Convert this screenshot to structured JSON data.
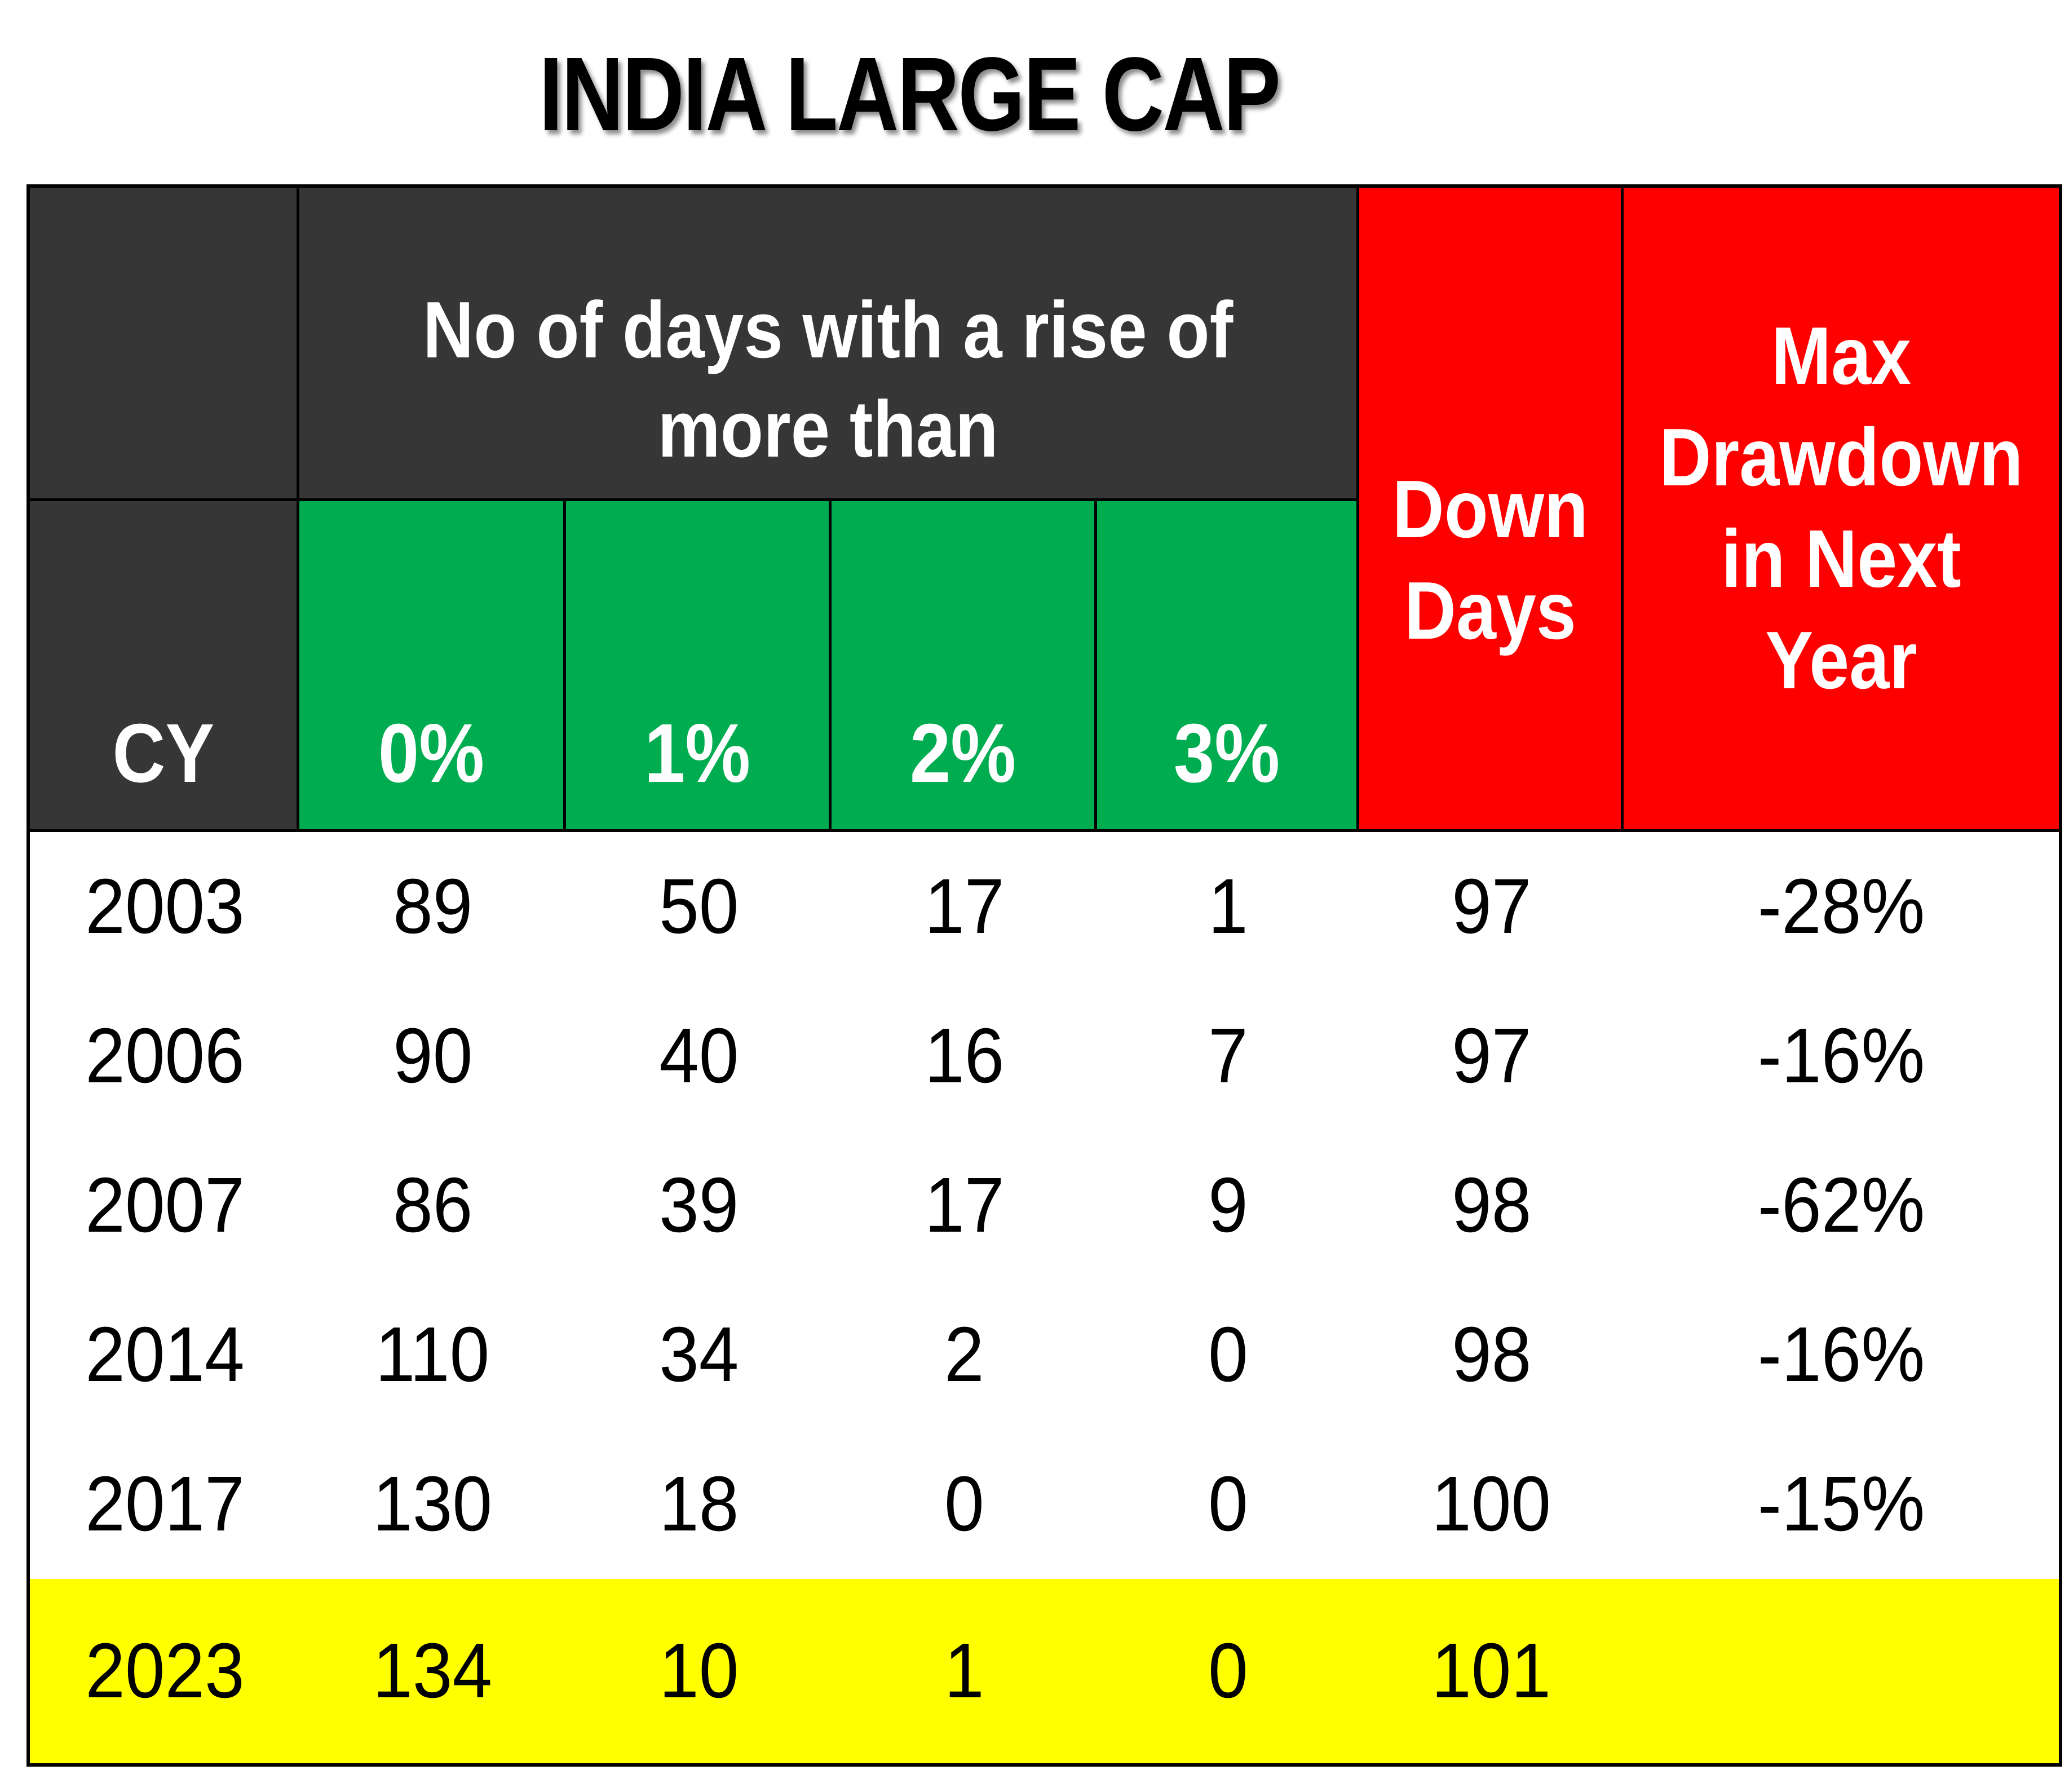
{
  "title": "INDIA LARGE CAP",
  "table": {
    "header": {
      "cy_label": "CY",
      "rise_group_label": "No of days with a rise of\nmore than",
      "rise_columns": [
        "0%",
        "1%",
        "2%",
        "3%"
      ],
      "down_days_label": "Down\nDays",
      "max_drawdown_label": "Max\nDrawdown\nin Next Year"
    },
    "rows": [
      {
        "year": "2003",
        "d0": "89",
        "d1": "50",
        "d2": "17",
        "d3": "1",
        "down": "97",
        "mdd": "-28%"
      },
      {
        "year": "2006",
        "d0": "90",
        "d1": "40",
        "d2": "16",
        "d3": "7",
        "down": "97",
        "mdd": "-16%"
      },
      {
        "year": "2007",
        "d0": "86",
        "d1": "39",
        "d2": "17",
        "d3": "9",
        "down": "98",
        "mdd": "-62%"
      },
      {
        "year": "2014",
        "d0": "110",
        "d1": "34",
        "d2": "2",
        "d3": "0",
        "down": "98",
        "mdd": "-16%"
      },
      {
        "year": "2017",
        "d0": "130",
        "d1": "18",
        "d2": "0",
        "d3": "0",
        "down": "100",
        "mdd": "-15%"
      },
      {
        "year": "2023",
        "d0": "134",
        "d1": "10",
        "d2": "1",
        "d3": "0",
        "down": "101",
        "mdd": ""
      }
    ],
    "colors": {
      "header_dark": "#363636",
      "rise_green": "#00AC50",
      "alert_red": "#FF0000",
      "highlight_yellow": "#FFFF00",
      "border_black": "#000000"
    }
  }
}
